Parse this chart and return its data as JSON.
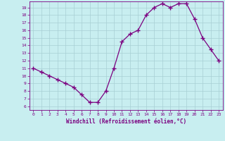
{
  "x": [
    0,
    1,
    2,
    3,
    4,
    5,
    6,
    7,
    8,
    9,
    10,
    11,
    12,
    13,
    14,
    15,
    16,
    17,
    18,
    19,
    20,
    21,
    22,
    23
  ],
  "y": [
    11,
    10.5,
    10,
    9.5,
    9,
    8.5,
    7.5,
    6.5,
    6.5,
    8,
    11,
    14.5,
    15.5,
    16,
    18,
    19,
    19.5,
    19,
    19.5,
    19.5,
    17.5,
    15,
    13.5,
    12
  ],
  "line_color": "#7b0080",
  "marker": "+",
  "marker_size": 4,
  "bg_color": "#c8eef0",
  "grid_color": "#a8cfd4",
  "tick_color": "#7b0080",
  "label_color": "#7b0080",
  "xlabel": "Windchill (Refroidissement éolien,°C)",
  "ylabel": "",
  "title": "",
  "ylim_min": 5.5,
  "ylim_max": 19.8,
  "yticks": [
    6,
    7,
    8,
    9,
    10,
    11,
    12,
    13,
    14,
    15,
    16,
    17,
    18,
    19
  ],
  "xlim_min": -0.5,
  "xlim_max": 23.5,
  "xticks": [
    0,
    1,
    2,
    3,
    4,
    5,
    6,
    7,
    8,
    9,
    10,
    11,
    12,
    13,
    14,
    15,
    16,
    17,
    18,
    19,
    20,
    21,
    22,
    23
  ]
}
